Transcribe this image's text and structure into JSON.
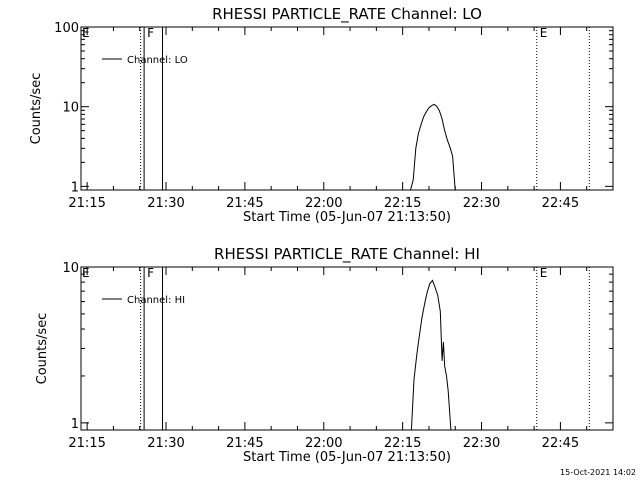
{
  "chart_data": [
    {
      "type": "line",
      "title": "RHESSI PARTICLE_RATE Channel: LO",
      "xlabel": "Start Time (05-Jun-07 21:13:50)",
      "ylabel": "Counts/sec",
      "yscale": "log",
      "xlim": [
        "21:13:50",
        "22:55:00"
      ],
      "ylim": [
        0.9,
        100
      ],
      "xticks": [
        "21:15",
        "21:30",
        "21:45",
        "22:00",
        "22:15",
        "22:30",
        "22:45"
      ],
      "yticks": [
        "1",
        "10",
        "100"
      ],
      "legend": "top-left",
      "series": [
        {
          "name": "Channel: LO",
          "x": [
            "22:16:30",
            "22:17:00",
            "22:17:30",
            "22:18:00",
            "22:18:30",
            "22:19:00",
            "22:19:30",
            "22:20:00",
            "22:20:30",
            "22:21:00",
            "22:21:30",
            "22:22:00",
            "22:22:30",
            "22:23:00",
            "22:23:30",
            "22:24:00",
            "22:24:30",
            "22:25:00"
          ],
          "values": [
            0.9,
            1.2,
            3.0,
            4.6,
            6.0,
            7.5,
            8.6,
            9.7,
            10.3,
            10.7,
            10.1,
            8.8,
            7.0,
            5.0,
            3.8,
            3.1,
            2.4,
            0.9
          ]
        }
      ],
      "events": [
        {
          "time": "21:25:10",
          "style": "dotted",
          "label": ""
        },
        {
          "time": "21:25:50",
          "style": "solid",
          "label": "F"
        },
        {
          "time": "21:29:20",
          "style": "solid",
          "label": ""
        },
        {
          "time": "22:40:30",
          "style": "dotted",
          "label": "E"
        },
        {
          "time": "22:50:30",
          "style": "dotted",
          "label": ""
        }
      ],
      "edge_label": "E"
    },
    {
      "type": "line",
      "title": "RHESSI PARTICLE_RATE Channel: HI",
      "xlabel": "Start Time (05-Jun-07 21:13:50)",
      "ylabel": "Counts/sec",
      "yscale": "log",
      "xlim": [
        "21:13:50",
        "22:55:00"
      ],
      "ylim": [
        0.9,
        10
      ],
      "xticks": [
        "21:15",
        "21:30",
        "21:45",
        "22:00",
        "22:15",
        "22:30",
        "22:45"
      ],
      "yticks": [
        "1",
        "10"
      ],
      "legend": "top-left",
      "series": [
        {
          "name": "Channel: HI",
          "x": [
            "22:16:40",
            "22:17:10",
            "22:17:40",
            "22:18:10",
            "22:18:40",
            "22:19:10",
            "22:19:40",
            "22:20:10",
            "22:20:40",
            "22:21:10",
            "22:21:40",
            "22:22:10",
            "22:22:30",
            "22:22:45",
            "22:23:00",
            "22:23:20",
            "22:23:40",
            "22:24:10"
          ],
          "values": [
            0.9,
            1.9,
            2.7,
            3.6,
            4.7,
            5.8,
            6.9,
            7.8,
            8.2,
            7.4,
            6.6,
            5.2,
            2.5,
            3.3,
            2.3,
            2.0,
            1.6,
            0.9
          ]
        }
      ],
      "events": [
        {
          "time": "21:25:10",
          "style": "dotted",
          "label": ""
        },
        {
          "time": "21:25:50",
          "style": "solid",
          "label": "F"
        },
        {
          "time": "21:29:20",
          "style": "solid",
          "label": ""
        },
        {
          "time": "22:40:30",
          "style": "dotted",
          "label": "E"
        },
        {
          "time": "22:50:30",
          "style": "dotted",
          "label": ""
        }
      ],
      "edge_label": "E"
    }
  ],
  "timestamp": "15-Oct-2021 14:02"
}
